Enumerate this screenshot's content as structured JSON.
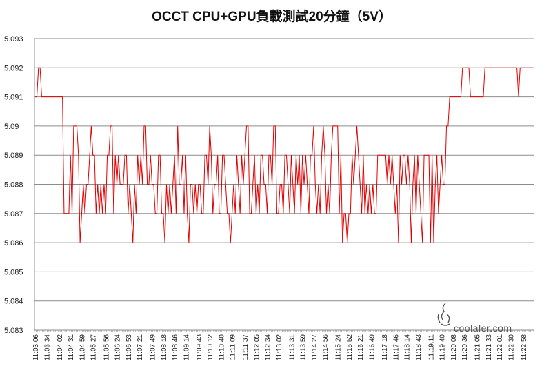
{
  "chart_data": {
    "type": "line",
    "title": "OCCT CPU+GPU負載測試20分鐘（5V）",
    "xlabel": "",
    "ylabel": "",
    "ylim": [
      5.083,
      5.093
    ],
    "yticks": [
      "5.093",
      "5.092",
      "5.091",
      "5.09",
      "5.089",
      "5.088",
      "5.087",
      "5.086",
      "5.085",
      "5.084",
      "5.083"
    ],
    "ytick_values": [
      5.093,
      5.092,
      5.091,
      5.09,
      5.089,
      5.088,
      5.087,
      5.086,
      5.085,
      5.084,
      5.083
    ],
    "xticks": [
      "11:03:06",
      "11:03:34",
      "11:04:02",
      "11:04:31",
      "11:04:59",
      "11:05:27",
      "11:05:56",
      "11:06:24",
      "11:06:53",
      "11:07:21",
      "11:07:49",
      "11:08:18",
      "11:08:46",
      "11:09:14",
      "11:09:43",
      "11:10:12",
      "11:10:40",
      "11:11:09",
      "11:11:37",
      "11:12:05",
      "11:12:34",
      "11:13:02",
      "11:13:31",
      "11:13:59",
      "11:14:27",
      "11:14:56",
      "11:15:24",
      "11:15:52",
      "11:16:21",
      "11:16:49",
      "11:17:18",
      "11:17:46",
      "11:18:14",
      "11:18:43",
      "11:19:11",
      "11:19:40",
      "11:20:08",
      "11:20:36",
      "11:21:05",
      "11:21:33",
      "11:22:01",
      "11:22:30",
      "11:22:58"
    ],
    "grid": true,
    "legend": "none",
    "series": [
      {
        "color": "#e00000",
        "values": [
          5.091,
          5.091,
          5.092,
          5.092,
          5.091,
          5.091,
          5.091,
          5.091,
          5.091,
          5.091,
          5.091,
          5.091,
          5.091,
          5.091,
          5.091,
          5.091,
          5.091,
          5.091,
          5.087,
          5.087,
          5.087,
          5.087,
          5.089,
          5.087,
          5.09,
          5.09,
          5.09,
          5.089,
          5.086,
          5.087,
          5.088,
          5.087,
          5.088,
          5.088,
          5.089,
          5.09,
          5.089,
          5.089,
          5.087,
          5.088,
          5.087,
          5.088,
          5.087,
          5.088,
          5.087,
          5.089,
          5.089,
          5.09,
          5.09,
          5.087,
          5.089,
          5.088,
          5.089,
          5.088,
          5.088,
          5.088,
          5.089,
          5.089,
          5.087,
          5.088,
          5.087,
          5.086,
          5.088,
          5.087,
          5.089,
          5.088,
          5.089,
          5.088,
          5.09,
          5.09,
          5.088,
          5.088,
          5.089,
          5.088,
          5.088,
          5.087,
          5.087,
          5.089,
          5.089,
          5.087,
          5.087,
          5.086,
          5.088,
          5.087,
          5.088,
          5.087,
          5.088,
          5.089,
          5.087,
          5.09,
          5.088,
          5.088,
          5.089,
          5.087,
          5.089,
          5.087,
          5.086,
          5.088,
          5.088,
          5.087,
          5.088,
          5.087,
          5.088,
          5.088,
          5.087,
          5.087,
          5.089,
          5.089,
          5.088,
          5.09,
          5.089,
          5.087,
          5.088,
          5.088,
          5.089,
          5.087,
          5.087,
          5.089,
          5.089,
          5.088,
          5.087,
          5.087,
          5.086,
          5.087,
          5.088,
          5.087,
          5.089,
          5.088,
          5.087,
          5.089,
          5.088,
          5.089,
          5.09,
          5.09,
          5.087,
          5.087,
          5.088,
          5.089,
          5.087,
          5.088,
          5.087,
          5.089,
          5.089,
          5.088,
          5.088,
          5.087,
          5.089,
          5.089,
          5.088,
          5.09,
          5.09,
          5.087,
          5.087,
          5.088,
          5.088,
          5.087,
          5.089,
          5.089,
          5.088,
          5.087,
          5.089,
          5.088,
          5.087,
          5.089,
          5.088,
          5.089,
          5.087,
          5.089,
          5.088,
          5.089,
          5.088,
          5.087,
          5.089,
          5.089,
          5.09,
          5.088,
          5.087,
          5.088,
          5.087,
          5.089,
          5.09,
          5.089,
          5.087,
          5.088,
          5.087,
          5.089,
          5.09,
          5.09,
          5.09,
          5.09,
          5.087,
          5.089,
          5.086,
          5.087,
          5.087,
          5.086,
          5.087,
          5.087,
          5.089,
          5.088,
          5.089,
          5.09,
          5.089,
          5.088,
          5.087,
          5.089,
          5.087,
          5.088,
          5.087,
          5.088,
          5.087,
          5.088,
          5.087,
          5.087,
          5.089,
          5.089,
          5.089,
          5.089,
          5.089,
          5.089,
          5.088,
          5.089,
          5.088,
          5.089,
          5.088,
          5.087,
          5.088,
          5.086,
          5.089,
          5.088,
          5.089,
          5.089,
          5.088,
          5.089,
          5.088,
          5.086,
          5.088,
          5.089,
          5.087,
          5.089,
          5.088,
          5.087,
          5.086,
          5.089,
          5.089,
          5.089,
          5.089,
          5.086,
          5.089,
          5.086,
          5.088,
          5.089,
          5.087,
          5.088,
          5.089,
          5.088,
          5.088,
          5.09,
          5.09,
          5.091,
          5.091,
          5.091,
          5.091,
          5.091,
          5.091,
          5.091,
          5.091,
          5.092,
          5.092,
          5.092,
          5.092,
          5.092,
          5.091,
          5.091,
          5.091,
          5.091,
          5.091,
          5.091,
          5.091,
          5.091,
          5.091,
          5.092,
          5.092,
          5.092,
          5.092,
          5.092,
          5.092,
          5.092,
          5.092,
          5.092,
          5.092,
          5.092,
          5.092,
          5.092,
          5.092,
          5.092,
          5.092,
          5.092,
          5.092,
          5.092,
          5.092,
          5.092,
          5.091,
          5.092,
          5.092,
          5.092,
          5.092,
          5.092,
          5.092,
          5.092,
          5.092,
          5.092
        ]
      }
    ]
  },
  "watermark": {
    "text": "coolaler.com"
  },
  "colors": {
    "grid": "#8c8c8c",
    "axis": "#8c8c8c",
    "series": "#e00000"
  }
}
